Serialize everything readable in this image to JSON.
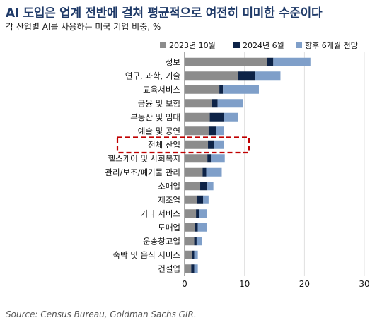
{
  "header": {
    "title": "AI 도입은 업계 전반에 걸쳐 평균적으로 여전히 미미한 수준이다",
    "subtitle": "각 산업별 AI를 사용하는 미국 기업 비중, %"
  },
  "footer": {
    "source": "Source: Census Bureau, Goldman Sachs GIR."
  },
  "chart_data": {
    "type": "bar",
    "orientation": "horizontal",
    "stacked": true,
    "legend_position": "top",
    "grid": true,
    "categories": [
      "정보",
      "연구, 과학, 기술",
      "교육서비스",
      "금융 및 보험",
      "부동산 및 임대",
      "예술 및 공연",
      "전체 산업",
      "헬스케어 및 사회복지",
      "관리/보조/폐기물 관리",
      "소매업",
      "제조업",
      "기타 서비스",
      "도매업",
      "운송창고업",
      "숙박 및 음식 서비스",
      "건설업"
    ],
    "highlighted_category": "전체 산업",
    "xlim": [
      0,
      30
    ],
    "xticks": [
      0,
      10,
      20,
      30
    ],
    "series": [
      {
        "name": "2023년 10월",
        "color": "#8c8c8c",
        "values": [
          13.8,
          8.9,
          5.8,
          4.6,
          4.2,
          4.0,
          3.9,
          3.8,
          3.0,
          2.6,
          2.0,
          1.9,
          1.7,
          1.6,
          1.3,
          1.1
        ]
      },
      {
        "name": "2024년 6월",
        "color": "#0d2347",
        "values": [
          1.0,
          2.8,
          0.6,
          0.9,
          2.3,
          1.2,
          1.0,
          0.6,
          0.6,
          1.2,
          1.1,
          0.5,
          0.5,
          0.4,
          0.3,
          0.5
        ]
      },
      {
        "name": "향후 6개월 전망",
        "color": "#7f9fc9",
        "values": [
          6.2,
          4.3,
          6.0,
          4.3,
          2.4,
          1.4,
          1.7,
          2.3,
          2.6,
          1.0,
          0.9,
          1.3,
          1.5,
          0.9,
          0.6,
          0.6
        ]
      }
    ]
  }
}
